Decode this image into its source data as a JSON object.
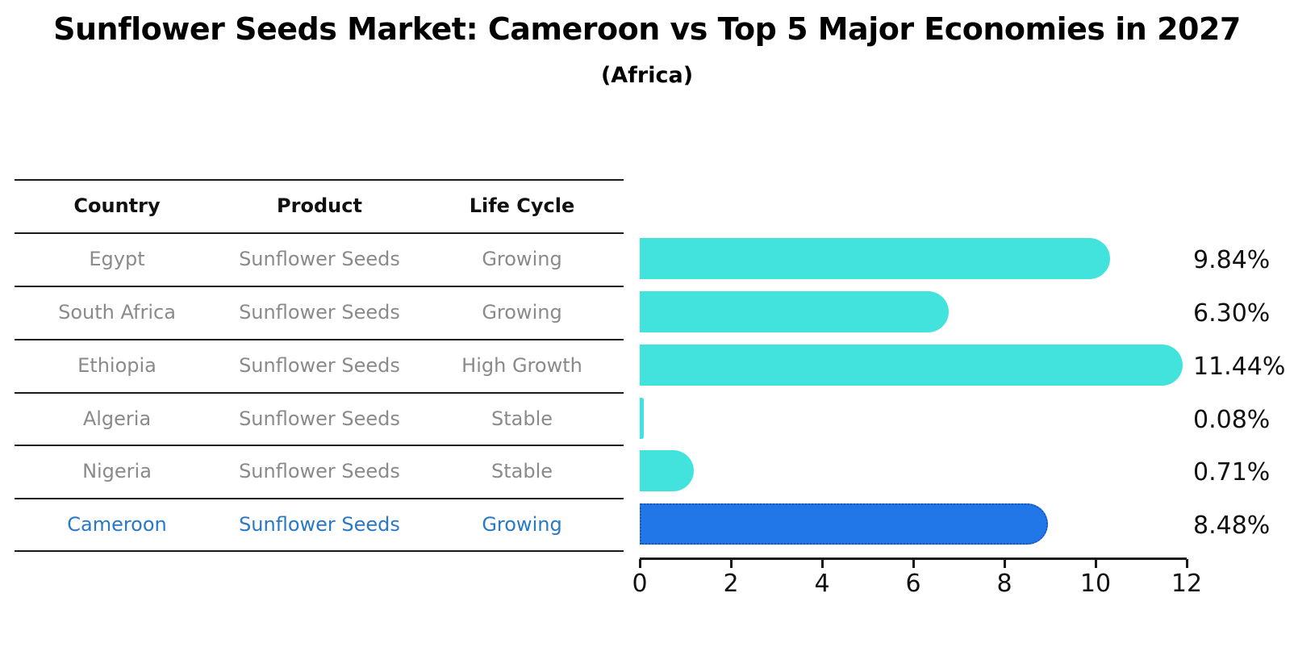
{
  "title": "Sunflower Seeds Market: Cameroon vs Top 5 Major Economies in 2027",
  "subtitle": "(Africa)",
  "table": {
    "headers": {
      "country": "Country",
      "product": "Product",
      "life_cycle": "Life Cycle"
    },
    "rows": [
      {
        "country": "Egypt",
        "product": "Sunflower Seeds",
        "life_cycle": "Growing"
      },
      {
        "country": "South Africa",
        "product": "Sunflower Seeds",
        "life_cycle": "Growing"
      },
      {
        "country": "Ethiopia",
        "product": "Sunflower Seeds",
        "life_cycle": "High Growth"
      },
      {
        "country": "Algeria",
        "product": "Sunflower Seeds",
        "life_cycle": "Stable"
      },
      {
        "country": "Nigeria",
        "product": "Sunflower Seeds",
        "life_cycle": "Stable"
      },
      {
        "country": "Cameroon",
        "product": "Sunflower Seeds",
        "life_cycle": "Growing"
      }
    ],
    "highlight_row_index": 5
  },
  "chart_data": {
    "type": "bar",
    "orientation": "horizontal",
    "categories": [
      "Egypt",
      "South Africa",
      "Ethiopia",
      "Algeria",
      "Nigeria",
      "Cameroon"
    ],
    "values": [
      9.84,
      6.3,
      11.44,
      0.08,
      0.71,
      8.48
    ],
    "value_labels": [
      "9.84%",
      "6.30%",
      "11.44%",
      "0.08%",
      "0.71%",
      "8.48%"
    ],
    "xlim": [
      0,
      12
    ],
    "xticks": [
      0,
      2,
      4,
      6,
      8,
      10,
      12
    ],
    "grid": false,
    "legend": "none",
    "bar_color": "#42E3DC",
    "highlight_bar_color": "#2176E8",
    "highlight_bar_border": "#1A55B8",
    "highlight_index": 5
  },
  "colors": {
    "background": "#FFFFFF",
    "title_text": "#000000",
    "table_text": "#8A8A8A",
    "table_header_text": "#111111",
    "highlight_text": "#2878C8",
    "line": "#1A1A1A",
    "value_label_text": "#111111"
  }
}
